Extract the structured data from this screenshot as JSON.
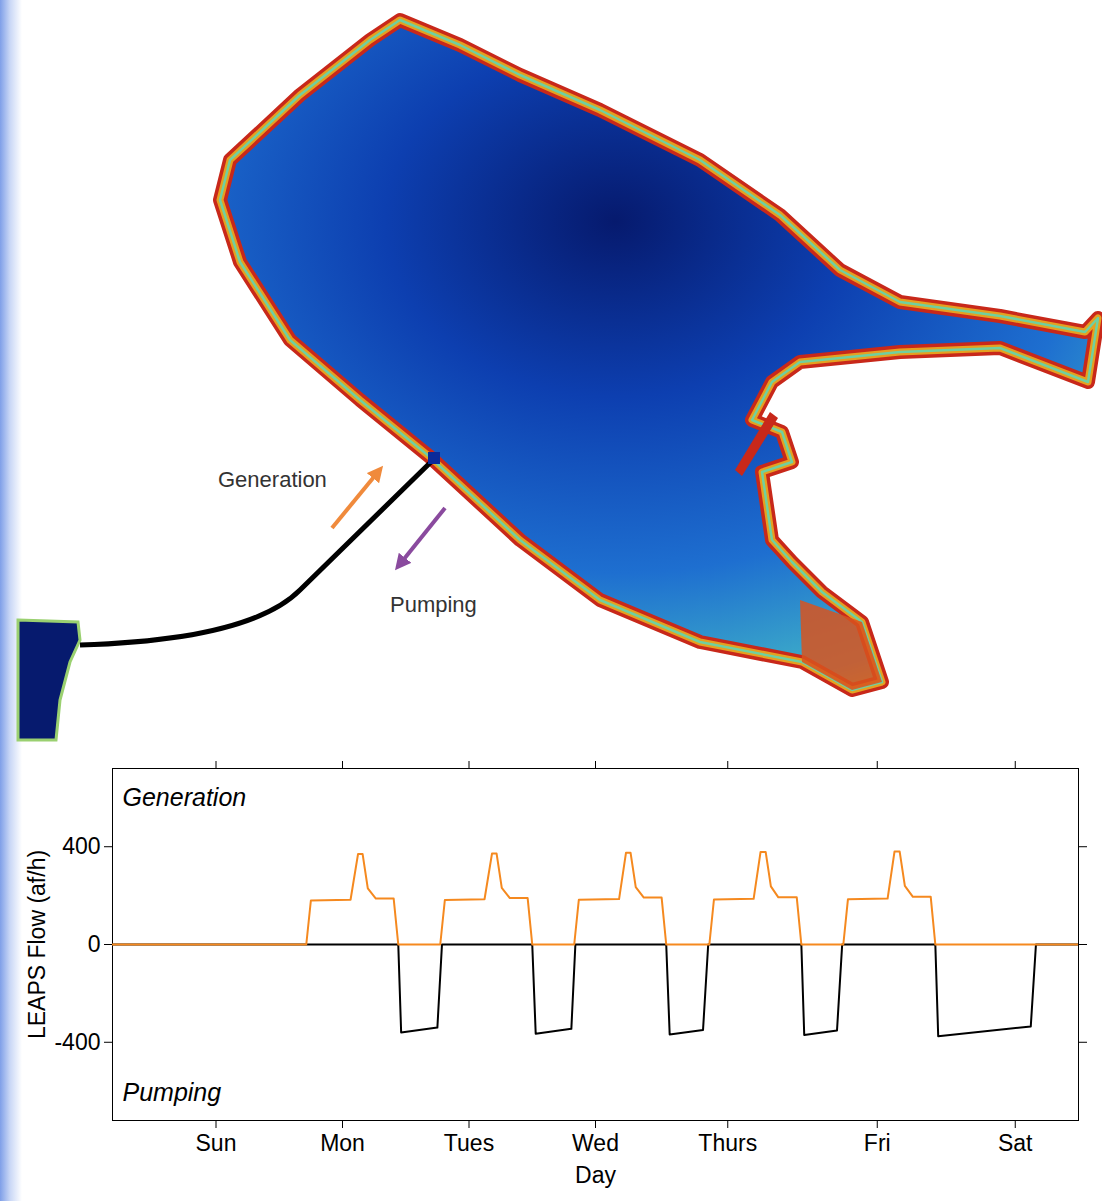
{
  "map": {
    "labels": {
      "generation": "Generation",
      "pumping": "Pumping"
    }
  },
  "chart_data": {
    "type": "line",
    "x_label": "Day",
    "y_label": "LEAPS Flow (af/h)",
    "xlim": [
      0,
      168
    ],
    "xticks": [
      {
        "value": 18,
        "label": "Sun"
      },
      {
        "value": 40,
        "label": "Mon"
      },
      {
        "value": 62,
        "label": "Tues"
      },
      {
        "value": 84,
        "label": "Wed"
      },
      {
        "value": 107,
        "label": "Thurs"
      },
      {
        "value": 133,
        "label": "Fri"
      },
      {
        "value": 157,
        "label": "Sat"
      }
    ],
    "ylim": [
      -720,
      720
    ],
    "yticks": [
      -400,
      0,
      400
    ],
    "series": [
      {
        "name": "Pumping",
        "color": "#000000",
        "x": [
          0,
          49.7,
          50.2,
          56.5,
          57.3,
          73.0,
          73.6,
          79.8,
          80.5,
          96.3,
          96.9,
          102.7,
          103.6,
          119.8,
          120.3,
          126.0,
          126.9,
          143.1,
          143.6,
          159.7,
          160.6,
          168
        ],
        "values": [
          0,
          0,
          -360,
          -340,
          0,
          0,
          -365,
          -345,
          0,
          0,
          -368,
          -350,
          0,
          0,
          -370,
          -352,
          0,
          0,
          -375,
          -335,
          0,
          0
        ]
      },
      {
        "name": "Generation",
        "color": "#f5891f",
        "x": [
          0,
          33.7,
          34.5,
          41.4,
          42.7,
          43.5,
          44.4,
          45.8,
          48.9,
          49.7,
          57.0,
          57.8,
          64.7,
          66.0,
          66.8,
          67.7,
          69.1,
          72.2,
          73.0,
          80.3,
          81.1,
          88.1,
          89.3,
          90.1,
          91.0,
          92.4,
          95.5,
          96.3,
          103.8,
          104.6,
          111.5,
          112.7,
          113.6,
          114.5,
          115.8,
          119.0,
          119.8,
          127.1,
          127.9,
          134.8,
          136.0,
          136.9,
          137.8,
          139.2,
          142.3,
          143.1,
          168
        ],
        "values": [
          0,
          0,
          180,
          183,
          370,
          370,
          230,
          188,
          188,
          0,
          0,
          182,
          185,
          372,
          372,
          232,
          190,
          190,
          0,
          0,
          183,
          186,
          375,
          375,
          235,
          192,
          192,
          0,
          0,
          184,
          187,
          378,
          378,
          238,
          193,
          193,
          0,
          0,
          185,
          188,
          380,
          380,
          240,
          195,
          195,
          0,
          0
        ]
      }
    ]
  }
}
